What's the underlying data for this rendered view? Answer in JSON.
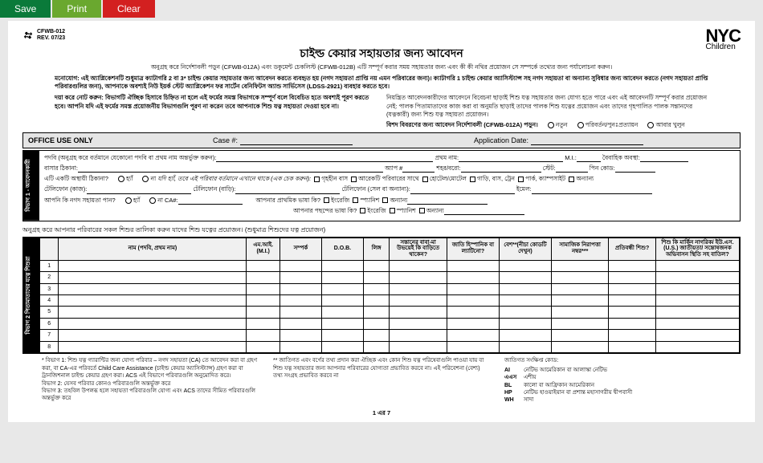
{
  "topbar": {
    "save": "Save",
    "print": "Print",
    "clear": "Clear"
  },
  "form_id": {
    "code": "CFWB-012",
    "rev": "REV. 07/23"
  },
  "logo": {
    "top": "NYC",
    "sub": "Children"
  },
  "title": "চাইল্ড কেয়ার সহায়তার জন্য আবেদন",
  "intro1": "অনুগ্রহ করে নির্দেশাবলী পড়ুন (CFWB-012A) এবং ডকুমেন্ট চেকলিস্ট (CFWB-012B) এটি সম্পূর্ণ করার সময় সহায়তার জন্য এবং কী কী নথির প্রয়োজন সে সম্পর্কে তথ্যের জন্য পর্যালোচনা করুন।",
  "intro2": "মনোযোগ: এই অ্যাপ্লিকেশনটি শুধুমাত্র ক্যাটাগরি 2 বা 3* চাইল্ড কেয়ার সহায়তার জন্য আবেদন করতে ব্যবহৃত হয় (নগদ সহায়তা প্রাপ্তি নয় এমন পরিবারের জন্য)। ক্যাটাগরি 1 চাইল্ড কেয়ার অ্যাসিস্ট্যান্স সহ নগদ সহায়তা বা অন্যান্য সুবিধার জন্য আবেদন করতে (নগদ সহায়তা প্রাপ্তি পরিবারগুলির জন্য), আপনাকে অবশ্যই নিউ ইয়র্ক স্টেট অ্যাপ্লিকেশন ফর সার্টেন বেনিফিটস অ্যান্ড সার্ভিসেস (LDSS-2921) ব্যবহার করতে হবে।",
  "note_left": "দয়া করে নোট করুন: বিভাগটি ঐচ্ছিক হিসাবে চিহ্নিত না হলে এই ফর্মের সমস্ত বিভাগকে সম্পূর্ণ বলে বিবেচিত হতে অবশ্যই পূরণ করতে হবে। আপনি যদি এই ফর্মের সমস্ত প্রয়োজনীয় বিভাগগুলি পূরণ না করেন তবে আপনাকে শিশু যত্ন সহায়তা দেওয়া হবে না।",
  "note_right_p": "নিয়ন্ত্রিত আবেদনকারীদের আবেদনে বিবেচনা ছাড়াই শিশু যত্ন সহায়তার জন্য যোগ্য হতে পারে এবং এই আবেদনটি সম্পূর্ণ করার প্রয়োজন নেই: পালক পিতামাতাদের কাজ করা বা অনুমতি ছাড়াই তাদের পালক শিশু যত্নের প্রয়োজন এবং তাদের গৃহপালিত পালক সন্তানদের (যত্নকারী) জন্য শিশু যত্ন সহায়তা প্রয়োজন।",
  "note_right_label": "বিশদ বিবরণের জন্য আবেদন নির্দেশাবলী (CFWB-012A) পড়ুন।",
  "section_radios": {
    "r1": "নতুন",
    "r2": "পরিবর্তন/পুনঃপ্রত্যায়ন",
    "r3": "আবার খুলুন"
  },
  "office": {
    "label": "OFFICE USE ONLY",
    "case": "Case #:",
    "appdate": "Application Date:"
  },
  "vtab1": "বিভাগ 1 - আবেদনকারী",
  "sec1": {
    "r1a": "পদবি (অনুগ্রহ করে বর্তমানে যেকোনো পদবি বা প্রথম নাম অন্তর্ভুক্ত করুন):",
    "r1b": "প্রথম নাম:",
    "r1c": "M.I.:",
    "r1d": "বৈবাহিক অবস্থা:",
    "r2a": "বাসার ঠিকানা:",
    "r2b": "অ্যাপ #",
    "r2c": "শহর/বরো:",
    "r2d": "স্টেট:",
    "r2e": "পিন কোড:",
    "r3q": "এটি একটি অস্থায়ী ঠিকানা?",
    "yes": "হ্যাঁ",
    "no": "না",
    "r3note": "যদি হ্যাঁ, তবে এই পরিবার বর্তমানে এখানে থাকে (এক চেক করুন):",
    "r3o1": "গৃহহীন বাস",
    "r3o2": "আরেকটি পরিবারের সাথে",
    "r3o3": "হোটেল/মোটেল",
    "r3o4": "গাড়ি, বাস, ট্রেন",
    "r3o5": "পার্ক, ক্যাম্পসাইট",
    "r3o6": "অন্যান্য",
    "r4a": "টেলিফোন (কাজ):",
    "r4b": "টেলিফোন (বাড়ি):",
    "r4c": "টেলিফোন (সেল বা অন্যান্য):",
    "r4d": "ইমেল:",
    "r5q": "আপনি কি নগদ সহায়তা পান?",
    "r5ca": "না CA#:",
    "r5b": "আপনার প্রাথমিক ভাষা কি?",
    "lang_en": "ইংরেজি",
    "lang_sp": "স্প্যানিশ",
    "lang_ot": "অন্যান্য",
    "r6": "আপনার পছন্দের ভাষা কি?"
  },
  "sub_head": "অনুগ্রহ করে আপনার পরিবারের সকল শিশুর তালিকা করুন যাদের শিশু যত্নের প্রয়োজন। (শুধুমাত্র শিশুদের যত্ন প্রয়োজন)",
  "vtab2": "বিভাগ 2\nপিতামাতাদের যত্নে শিশুরা",
  "table": {
    "headers": [
      "নাম (পদবি, প্রথম নাম)",
      "এম.আই.\n(M.I.)",
      "সম্পর্ক",
      "D.O.B.",
      "লিঙ্গ",
      "সন্তানের বাবা-মা উভয়েই কি বাড়িতে থাকেন?",
      "জাতি হিস্পানিক বা ল্যাটিনো?",
      "বেশ**(নীচা কোডটি দেখুন)",
      "সামাজিক নিরাপত্তা নম্বর***",
      "প্রতিবন্ধী শিশু?",
      "শিশু কি মার্কিন নাগরিক/ ইউ.এস.(U.S.) জাতীয়তা/ সন্তোষজনক অভিবাসন স্থিতি সহ বাতিল?"
    ],
    "rows": [
      "1",
      "2",
      "3",
      "4",
      "5",
      "6",
      "7",
      "8"
    ]
  },
  "footnotes": {
    "col1": "* বিভাগ 1: শিশু যত্ন গ্যারান্টির জন্য যোগ্য পরিবার – নগদ সহায়তা (CA) তে আবেদন করা বা গ্রহণ করা, বা CA-এর পরিবর্তে Child Care Assistance (চাইল্ড কেয়ার অ্যাসিস্ট্যান্স) গ্রহণ করা বা ট্রানজিশনাল চাইল্ড কেয়ার গ্রহণ করা। ACS এই বিভাগে পরিবারগুলি অনুমোদিত করে।\nবিভাগ 2: যেসব পরিবার কোনও পরিবারগুলি অন্তর্ভুক্ত করে\nবিভাগ 3: তহবিল উপলব্ধ হলে সহায়তা পরিবারগুলি যোগ্য এবং ACS তাদের সীমিত পরিবারগুলি অন্তর্ভুক্ত করে",
    "col2": "** জাতিগত এবং বর্ণের তথ্য প্রদান করা ঐচ্ছিক এবং কোন শিশু যত্ন পরিষেবাগুলি পাওয়া যায় বা শিশু যত্ন সহায়তার জন্য আপনার পরিবারের যোগ্যতা প্রভাবিত করবে না। এই পরিবেশনা (বেশ্য) তথ্য সংগ্রহ প্রভাবিত করবে না",
    "col3_title": "জাতিগত সংক্ষিপ্ত কোড:",
    "codes": [
      [
        "AI",
        "নেটিভ আমেরিকান বা আলাস্কা নেটিভ"
      ],
      [
        "এএস",
        "এশীয়"
      ],
      [
        "BL",
        "কালো বা আফ্রিকান আমেরিকান"
      ],
      [
        "HP",
        "নেটিভ হাওয়াইয়ান বা প্রশান্ত মহাসাগরীয় দ্বীপবাসী"
      ],
      [
        "WH",
        "সাদা"
      ]
    ]
  },
  "pagenum": "1 এর 7"
}
